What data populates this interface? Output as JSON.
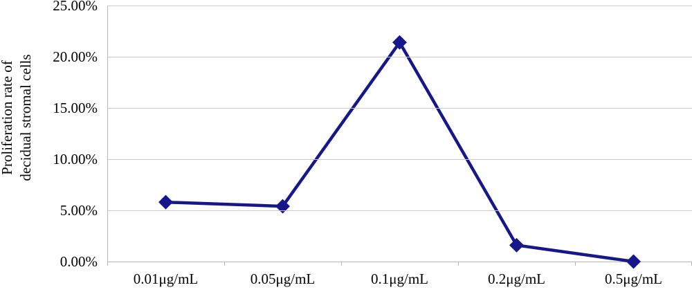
{
  "chart_data": {
    "type": "line",
    "categories": [
      "0.01μg/mL",
      "0.05μg/mL",
      "0.1μg/mL",
      "0.2μg/mL",
      "0.5μg/mL"
    ],
    "values": [
      5.8,
      5.4,
      21.4,
      1.6,
      0.0
    ],
    "series": [
      {
        "name": "Proliferation rate",
        "values": [
          5.8,
          5.4,
          21.4,
          1.6,
          0.0
        ]
      }
    ],
    "title": "",
    "xlabel": "",
    "ylabel": "Proliferation rate of decidual stromal cells",
    "ylabel_lines": [
      "Proliferation rate of",
      "decidual stromal cells"
    ],
    "ylim": [
      0,
      25
    ],
    "ytick_step": 5,
    "ytick_labels": [
      "0.00%",
      "5.00%",
      "10.00%",
      "15.00%",
      "20.00%",
      "25.00%"
    ],
    "grid": true,
    "legend": "none",
    "marker_shape": "diamond",
    "colors": {
      "line": "#17178c",
      "marker": "#17178c",
      "gridline": "#c9c9c9",
      "axis": "#b3b3b3",
      "text": "#000000",
      "background": "#ffffff"
    }
  }
}
